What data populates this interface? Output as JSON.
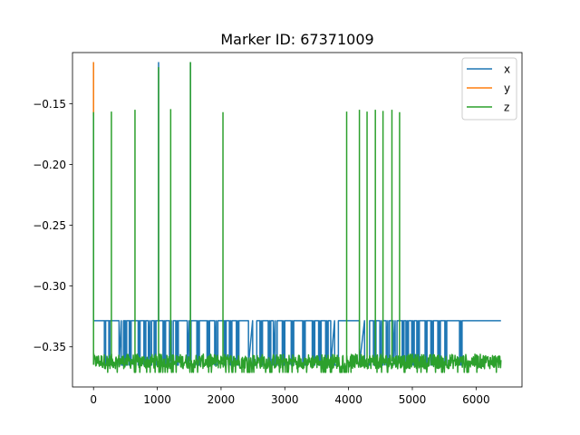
{
  "chart_data": {
    "type": "line",
    "title": "Marker ID: 67371009",
    "xlabel": "",
    "ylabel": "",
    "xlim": [
      -330,
      6720
    ],
    "ylim": [
      -0.383,
      -0.108
    ],
    "x_ticks": [
      0,
      1000,
      2000,
      3000,
      4000,
      5000,
      6000
    ],
    "x_tick_labels": [
      "0",
      "1000",
      "2000",
      "3000",
      "4000",
      "5000",
      "6000"
    ],
    "y_ticks": [
      -0.35,
      -0.3,
      -0.25,
      -0.2,
      -0.15
    ],
    "y_tick_labels": [
      "−0.35",
      "−0.30",
      "−0.25",
      "−0.20",
      "−0.15"
    ],
    "grid": false,
    "legend_position": "top-right",
    "x_range": [
      0,
      6390
    ],
    "series": [
      {
        "name": "x",
        "color": "#1f77b4",
        "baseline": -0.3285,
        "low": -0.365,
        "dips": [
          [
            170,
            190
          ],
          [
            240,
            255
          ],
          [
            400,
            470
          ],
          [
            490,
            520
          ],
          [
            560,
            590
          ],
          [
            700,
            730
          ],
          [
            790,
            820
          ],
          [
            860,
            910
          ],
          [
            950,
            980
          ],
          [
            1090,
            1130
          ],
          [
            1190,
            1250
          ],
          [
            1290,
            1330
          ],
          [
            1470,
            1530
          ],
          [
            1620,
            1660
          ],
          [
            1780,
            1820
          ],
          [
            1900,
            1950
          ],
          [
            2050,
            2080
          ],
          [
            2130,
            2170
          ],
          [
            2240,
            2280
          ],
          [
            2430,
            2560
          ],
          [
            2610,
            2650
          ],
          [
            2740,
            2780
          ],
          [
            2820,
            2880
          ],
          [
            2960,
            3000
          ],
          [
            3100,
            3140
          ],
          [
            3280,
            3320
          ],
          [
            3430,
            3470
          ],
          [
            3530,
            3570
          ],
          [
            3640,
            3680
          ],
          [
            3720,
            3840
          ],
          [
            4170,
            4330
          ],
          [
            4390,
            4430
          ],
          [
            4490,
            4540
          ],
          [
            4590,
            4640
          ],
          [
            4700,
            4760
          ],
          [
            4840,
            4870
          ],
          [
            4900,
            4940
          ],
          [
            4990,
            5030
          ],
          [
            5070,
            5110
          ],
          [
            5200,
            5230
          ],
          [
            5290,
            5330
          ],
          [
            5400,
            5440
          ],
          [
            5510,
            5540
          ],
          [
            5740,
            5780
          ]
        ],
        "spikes": [
          [
            0,
            -0.1158
          ],
          [
            1020,
            -0.1158
          ],
          [
            1520,
            -0.1158
          ]
        ]
      },
      {
        "name": "y",
        "color": "#ff7f0e",
        "spikes": [
          [
            0,
            -0.1158
          ]
        ]
      },
      {
        "name": "z",
        "color": "#2ca02c",
        "band": [
          -0.368,
          -0.356
        ],
        "band_low_excursion": -0.371,
        "spikes": [
          [
            0,
            -0.157
          ],
          [
            280,
            -0.1565
          ],
          [
            650,
            -0.155
          ],
          [
            1020,
            -0.12
          ],
          [
            1210,
            -0.1545
          ],
          [
            1520,
            -0.1158
          ],
          [
            2030,
            -0.157
          ],
          [
            3970,
            -0.1565
          ],
          [
            4170,
            -0.155
          ],
          [
            4290,
            -0.1565
          ],
          [
            4420,
            -0.155
          ],
          [
            4540,
            -0.156
          ],
          [
            4680,
            -0.155
          ],
          [
            4800,
            -0.157
          ]
        ]
      }
    ]
  }
}
